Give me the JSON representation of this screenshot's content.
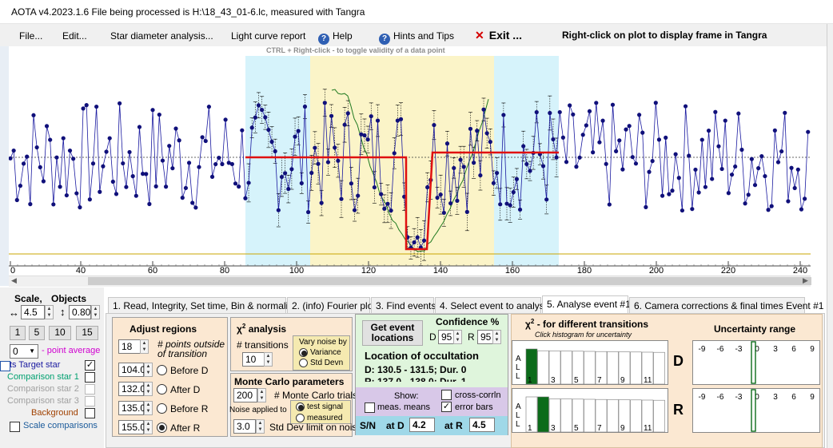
{
  "window": {
    "title": "AOTA v4.2023.1.6    File being processed is H:\\18_43_01-6.lc, measured with Tangra"
  },
  "menu": {
    "file": "File...",
    "edit": "Edit...",
    "star_diameter": "Star diameter analysis...",
    "light_curve_report": "Light curve report",
    "help": "Help",
    "hints": "Hints and Tips",
    "exit": "Exit ...",
    "right_click_hint": "Right-click on plot to display frame in Tangra",
    "ctrl_hint": "CTRL + Right-click  -  to toggle validity of a data point"
  },
  "chart_data": {
    "type": "scatter",
    "x_range": [
      0,
      242
    ],
    "x_ticks": [
      "0",
      "40",
      "60",
      "80",
      "100",
      "120",
      "140",
      "160",
      "180",
      "200",
      "220",
      "240"
    ],
    "regions": [
      {
        "kind": "before-D",
        "from": 104,
        "to": 132,
        "color": "#d6f3fb"
      },
      {
        "kind": "after-D",
        "from": 132,
        "to": 135,
        "color": "#fbf4c8"
      },
      {
        "kind": "before-R",
        "from": 135,
        "to": 155,
        "color": "#fbf4c8"
      },
      {
        "kind": "after-R",
        "from": 155,
        "to": 174,
        "color": "#d6f3fb"
      }
    ],
    "model": {
      "baseline": 1.0,
      "bottom": 0.0,
      "D": 130.5,
      "R": 137.5
    }
  },
  "left": {
    "scale_label": "Scale,",
    "objects_label": "Objects",
    "scale_x": "4.5",
    "scale_y": "0.80",
    "bin_buttons": [
      "1",
      "5",
      "10",
      "15"
    ],
    "avg_value": "0",
    "avg_label": "- point average",
    "target_label": "ts  Target star",
    "comp1": "Comparison star 1",
    "comp2": "Comparison star 2",
    "comp3": "Comparison star 3",
    "background": "Background",
    "scale_comparisons": "Scale comparisons"
  },
  "tabs": [
    "1.  Read, Integrity, Set time, Bin & normalise",
    "2. (info)  Fourier plot",
    "3. Find events",
    "4. Select event to analyse",
    "5. Analyse event #1",
    "6. Camera corrections & final times Event #1"
  ],
  "adjust": {
    "title": "Adjust regions",
    "points_outside": "18",
    "points_label1": "# points outside",
    "points_label2": "of transition",
    "before_d_val": "104.0",
    "before_d": "Before D",
    "after_d_val": "132.0",
    "after_d": "After D",
    "before_r_val": "135.0",
    "before_r": "Before R",
    "after_r_val": "155.0",
    "after_r": "After R"
  },
  "chi": {
    "title_chi": "χ",
    "title_sup": "2",
    "title_rest": " analysis",
    "transitions_label": "# transitions",
    "transitions_val": "10",
    "vary_noise_title": "Vary noise by",
    "variance": "Variance",
    "std_devn": "Std Devn"
  },
  "monte": {
    "title": "Monte Carlo parameters",
    "trials_val": "200",
    "trials_label": "# Monte Carlo trials",
    "noise_applied": "Noise applied to",
    "test_signal": "test signal",
    "measured": "measured",
    "stddev_val": "3.0",
    "stddev_label": "Std Dev limit on noise"
  },
  "location": {
    "get_event_1": "Get event",
    "get_event_2": "locations",
    "confidence": "Confidence %",
    "conf_d_label": "D",
    "conf_d": "95",
    "conf_r_label": "R",
    "conf_r": "95",
    "title": "Location of occultation",
    "d_line": "D: 130.5 - 131.5; Dur. 0",
    "r_line": "R: 137.0 - 138.0; Dur. 1",
    "show": "Show:",
    "cross_corr": "cross-corrln",
    "meas_means": "meas. means",
    "error_bars": "error bars",
    "sn": "S/N",
    "at_d": "at D",
    "sn_d": "4.2",
    "at_r": "at R",
    "sn_r": "4.5"
  },
  "hist": {
    "title_chi": "χ",
    "title_rest": " - for different transitions",
    "subtitle": "Click histogram for uncertainty",
    "uncertainty": "Uncertainty range",
    "all": [
      "A",
      "L",
      "L"
    ],
    "ticks": [
      "1",
      "3",
      "5",
      "7",
      "9",
      "11"
    ],
    "range_ticks": [
      "-9",
      "-6",
      "-3",
      "0",
      "3",
      "6",
      "9"
    ],
    "label_d": "D",
    "label_r": "R"
  }
}
